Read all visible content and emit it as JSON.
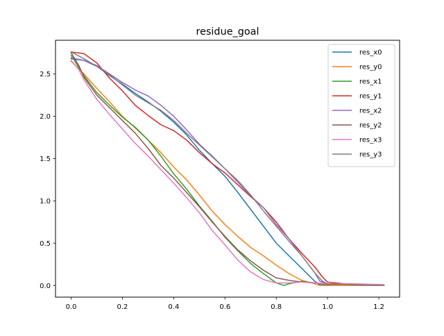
{
  "chart_data": {
    "type": "line",
    "title": "residue_goal",
    "xlabel": "",
    "ylabel": "",
    "xlim": [
      -0.061,
      1.281
    ],
    "ylim": [
      -0.138,
      2.898
    ],
    "xticks": [
      0.0,
      0.2,
      0.4,
      0.6,
      0.8,
      1.0,
      1.2
    ],
    "xtick_labels": [
      "0.0",
      "0.2",
      "0.4",
      "0.6",
      "0.8",
      "1.0",
      "1.2"
    ],
    "yticks": [
      0.0,
      0.5,
      1.0,
      1.5,
      2.0,
      2.5
    ],
    "ytick_labels": [
      "0.0",
      "0.5",
      "1.0",
      "1.5",
      "2.0",
      "2.5"
    ],
    "grid": false,
    "legend_position": "upper right",
    "series": [
      {
        "name": "res_x0",
        "color": "#1f77b4",
        "x": [
          0.0,
          0.05,
          0.1,
          0.15,
          0.2,
          0.25,
          0.3,
          0.35,
          0.4,
          0.45,
          0.5,
          0.55,
          0.6,
          0.65,
          0.7,
          0.75,
          0.8,
          0.85,
          0.9,
          0.95,
          0.97,
          1.0,
          1.1,
          1.22
        ],
        "y": [
          2.68,
          2.66,
          2.59,
          2.48,
          2.38,
          2.27,
          2.17,
          2.06,
          1.93,
          1.78,
          1.6,
          1.44,
          1.29,
          1.1,
          0.9,
          0.7,
          0.5,
          0.35,
          0.2,
          0.05,
          0.01,
          0.01,
          0.0,
          0.0
        ]
      },
      {
        "name": "res_y0",
        "color": "#ff7f0e",
        "x": [
          0.0,
          0.05,
          0.1,
          0.15,
          0.2,
          0.25,
          0.3,
          0.35,
          0.4,
          0.45,
          0.5,
          0.55,
          0.6,
          0.65,
          0.7,
          0.75,
          0.8,
          0.85,
          0.9,
          0.95,
          0.97,
          1.0,
          1.1,
          1.22
        ],
        "y": [
          2.65,
          2.5,
          2.33,
          2.17,
          2.0,
          1.86,
          1.72,
          1.57,
          1.4,
          1.25,
          1.07,
          0.88,
          0.72,
          0.58,
          0.45,
          0.35,
          0.24,
          0.14,
          0.06,
          0.02,
          0.0,
          0.0,
          0.0,
          0.0
        ]
      },
      {
        "name": "res_x1",
        "color": "#2ca02c",
        "x": [
          0.0,
          0.05,
          0.1,
          0.15,
          0.2,
          0.25,
          0.3,
          0.35,
          0.4,
          0.45,
          0.5,
          0.55,
          0.6,
          0.65,
          0.7,
          0.75,
          0.8,
          0.83,
          0.85,
          0.9,
          0.95,
          1.0,
          1.1,
          1.22
        ],
        "y": [
          2.72,
          2.48,
          2.28,
          2.13,
          1.99,
          1.87,
          1.72,
          1.53,
          1.32,
          1.14,
          0.94,
          0.76,
          0.57,
          0.41,
          0.26,
          0.14,
          0.03,
          0.0,
          0.02,
          0.05,
          0.03,
          0.02,
          0.01,
          0.0
        ]
      },
      {
        "name": "res_y1",
        "color": "#d62728",
        "x": [
          0.0,
          0.05,
          0.1,
          0.15,
          0.2,
          0.25,
          0.3,
          0.35,
          0.4,
          0.45,
          0.5,
          0.55,
          0.6,
          0.65,
          0.7,
          0.75,
          0.8,
          0.85,
          0.9,
          0.95,
          0.98,
          1.0,
          1.1,
          1.22
        ],
        "y": [
          2.76,
          2.74,
          2.63,
          2.45,
          2.3,
          2.13,
          2.01,
          1.9,
          1.83,
          1.72,
          1.57,
          1.44,
          1.33,
          1.19,
          1.05,
          0.92,
          0.75,
          0.55,
          0.38,
          0.22,
          0.1,
          0.04,
          0.01,
          0.0
        ]
      },
      {
        "name": "res_x2",
        "color": "#9467bd",
        "x": [
          0.0,
          0.05,
          0.1,
          0.15,
          0.2,
          0.25,
          0.3,
          0.35,
          0.4,
          0.45,
          0.5,
          0.55,
          0.6,
          0.65,
          0.7,
          0.75,
          0.8,
          0.85,
          0.9,
          0.95,
          0.97,
          1.0,
          1.1,
          1.22
        ],
        "y": [
          2.69,
          2.66,
          2.6,
          2.5,
          2.4,
          2.31,
          2.24,
          2.13,
          2.0,
          1.84,
          1.67,
          1.53,
          1.38,
          1.22,
          1.06,
          0.92,
          0.72,
          0.55,
          0.35,
          0.15,
          0.05,
          0.02,
          0.01,
          0.0
        ]
      },
      {
        "name": "res_y2",
        "color": "#8c564b",
        "x": [
          0.0,
          0.03,
          0.05,
          0.1,
          0.15,
          0.2,
          0.25,
          0.3,
          0.35,
          0.4,
          0.45,
          0.5,
          0.55,
          0.6,
          0.65,
          0.7,
          0.75,
          0.8,
          0.85,
          0.9,
          0.95,
          1.0,
          1.1,
          1.22
        ],
        "y": [
          2.75,
          2.6,
          2.46,
          2.25,
          2.1,
          1.95,
          1.8,
          1.62,
          1.42,
          1.27,
          1.1,
          0.93,
          0.75,
          0.58,
          0.42,
          0.29,
          0.18,
          0.09,
          0.06,
          0.04,
          0.03,
          0.02,
          0.01,
          0.0
        ]
      },
      {
        "name": "res_x3",
        "color": "#e377c2",
        "x": [
          0.0,
          0.03,
          0.05,
          0.1,
          0.15,
          0.2,
          0.25,
          0.3,
          0.35,
          0.4,
          0.45,
          0.5,
          0.55,
          0.6,
          0.65,
          0.7,
          0.75,
          0.8,
          0.85,
          0.9,
          0.95,
          1.0,
          1.1,
          1.22
        ],
        "y": [
          2.66,
          2.55,
          2.43,
          2.2,
          2.02,
          1.85,
          1.68,
          1.53,
          1.37,
          1.21,
          1.04,
          0.86,
          0.65,
          0.48,
          0.3,
          0.16,
          0.07,
          0.03,
          0.03,
          0.04,
          0.03,
          0.02,
          0.02,
          0.01
        ]
      },
      {
        "name": "res_y3",
        "color": "#7f7f7f",
        "x": [
          0.0,
          0.05,
          0.1,
          0.15,
          0.2,
          0.25,
          0.3,
          0.35,
          0.4,
          0.45,
          0.5,
          0.55,
          0.6,
          0.65,
          0.7,
          0.75,
          0.8,
          0.85,
          0.9,
          0.95,
          0.98,
          1.0,
          1.1,
          1.22
        ],
        "y": [
          2.76,
          2.68,
          2.59,
          2.49,
          2.37,
          2.25,
          2.16,
          2.07,
          1.95,
          1.8,
          1.66,
          1.52,
          1.38,
          1.24,
          1.07,
          0.88,
          0.7,
          0.52,
          0.35,
          0.15,
          0.05,
          0.02,
          0.01,
          0.0
        ]
      }
    ]
  }
}
